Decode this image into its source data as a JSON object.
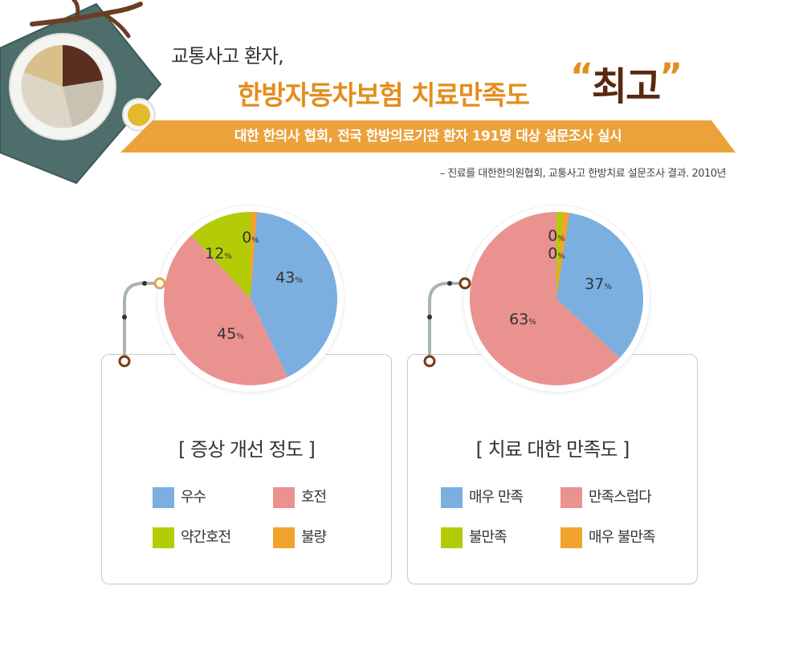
{
  "header": {
    "line1": "교통사고 환자,",
    "line2": "한방자동차보험 치료만족도",
    "highlight_open": "“",
    "highlight": "최고",
    "highlight_close": "”",
    "ribbon": "대한 한의사 협회, 전국 한방의료기관 환자 191명 대상 설문조사 실시",
    "source": "– 진료를 대한한의원협회, 교통사고 한방치료 설문조사 결과. 2010년"
  },
  "colors": {
    "blue": "#7aafe0",
    "pink": "#ea9290",
    "green": "#b3cc07",
    "orange": "#f0a42e",
    "ribbon": "#eba23a"
  },
  "chart_data": [
    {
      "type": "pie",
      "title": "[ 증상 개선 정도 ]",
      "categories": [
        "우수",
        "호전",
        "약간호전",
        "불량"
      ],
      "values": [
        43,
        45,
        12,
        0
      ],
      "labels": [
        "43",
        "45",
        "12",
        "0"
      ],
      "unit": "%",
      "colors": [
        "#7aafe0",
        "#ea9290",
        "#b3cc07",
        "#f0a42e"
      ],
      "legend": [
        "우수",
        "호전",
        "약간호전",
        "불량"
      ]
    },
    {
      "type": "pie",
      "title": "[ 치료 대한 만족도 ]",
      "categories": [
        "매우 만족",
        "만족스럽다",
        "불만족",
        "매우 불만족"
      ],
      "values": [
        37,
        63,
        0,
        0
      ],
      "labels": [
        "37",
        "63",
        "0",
        "0"
      ],
      "unit": "%",
      "colors": [
        "#7aafe0",
        "#ea9290",
        "#b3cc07",
        "#f0a42e"
      ],
      "legend": [
        "매우 만족",
        "만족스럽다",
        "불만족",
        "매우 불만족"
      ]
    }
  ]
}
